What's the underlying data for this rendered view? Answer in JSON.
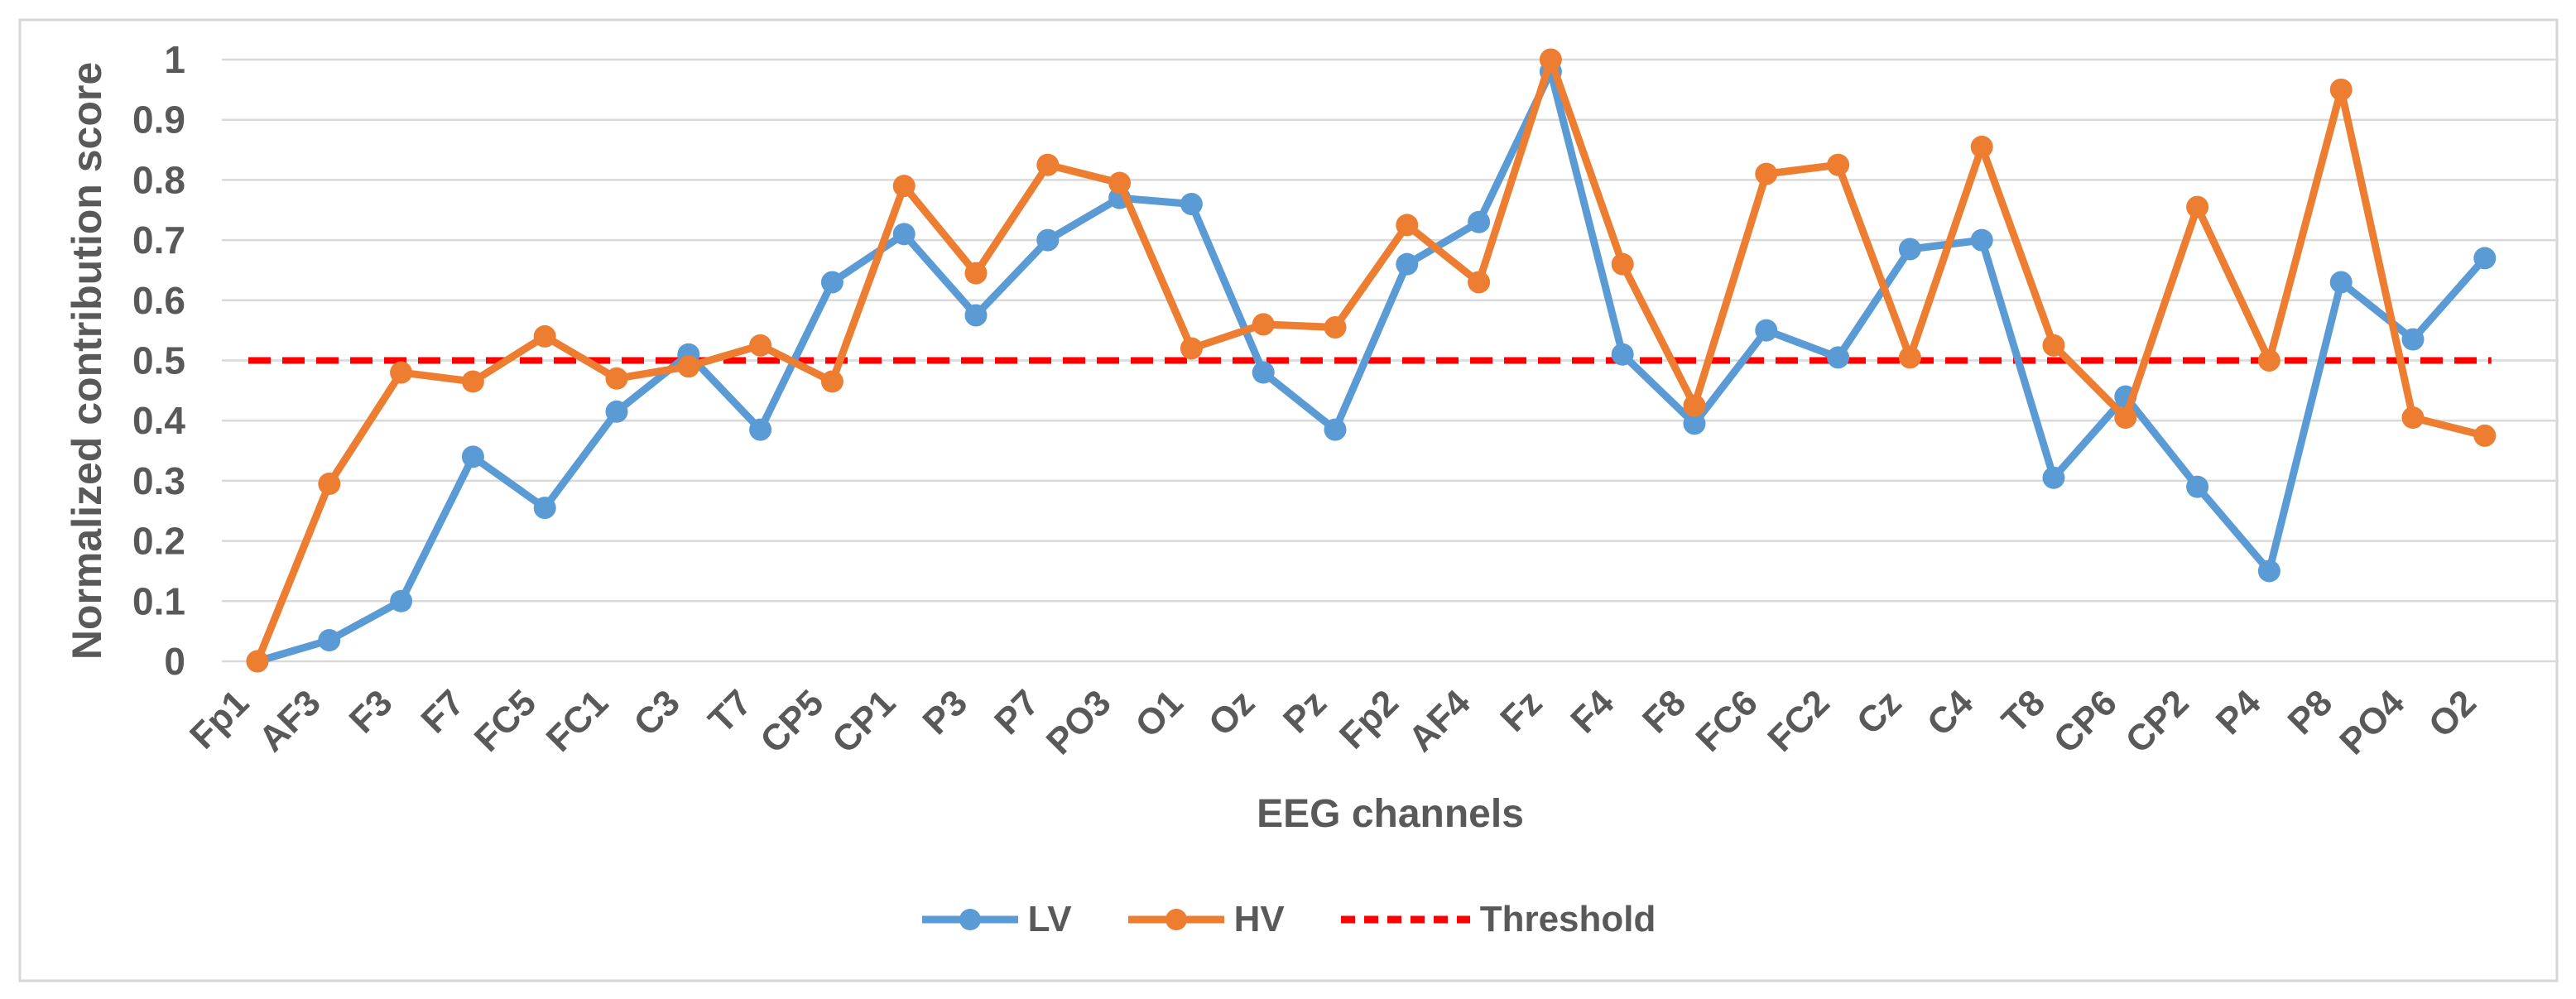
{
  "chart_data": {
    "type": "line",
    "title": "",
    "xlabel": "EEG channels",
    "ylabel": "Normalized contribution score",
    "ylim": [
      0,
      1
    ],
    "ytick_step": 0.1,
    "grid": true,
    "legend_position": "bottom",
    "categories": [
      "Fp1",
      "AF3",
      "F3",
      "F7",
      "FC5",
      "FC1",
      "C3",
      "T7",
      "CP5",
      "CP1",
      "P3",
      "P7",
      "PO3",
      "O1",
      "Oz",
      "Pz",
      "Fp2",
      "AF4",
      "Fz",
      "F4",
      "F8",
      "FC6",
      "FC2",
      "Cz",
      "C4",
      "T8",
      "CP6",
      "CP2",
      "P4",
      "P8",
      "PO4",
      "O2"
    ],
    "series": [
      {
        "name": "LV",
        "color": "#5B9BD5",
        "marker": "circle",
        "values": [
          0,
          0.035,
          0.1,
          0.34,
          0.255,
          0.415,
          0.51,
          0.385,
          0.63,
          0.71,
          0.575,
          0.7,
          0.77,
          0.76,
          0.48,
          0.385,
          0.66,
          0.73,
          0.98,
          0.51,
          0.395,
          0.55,
          0.505,
          0.685,
          0.7,
          0.305,
          0.44,
          0.29,
          0.15,
          0.63,
          0.535,
          0.67
        ]
      },
      {
        "name": "HV",
        "color": "#ED7D31",
        "marker": "circle",
        "values": [
          0,
          0.295,
          0.48,
          0.465,
          0.54,
          0.47,
          0.49,
          0.525,
          0.465,
          0.79,
          0.645,
          0.825,
          0.795,
          0.52,
          0.56,
          0.555,
          0.725,
          0.63,
          1,
          0.66,
          0.425,
          0.81,
          0.825,
          0.505,
          0.855,
          0.525,
          0.405,
          0.755,
          0.5,
          0.95,
          0.405,
          0.375
        ]
      }
    ],
    "threshold": {
      "name": "Threshold",
      "value": 0.5,
      "color": "#FF0000",
      "style": "dashed"
    },
    "colors": {
      "gridline": "#D9D9D9",
      "frame": "#D6D6D6",
      "text": "#595959"
    }
  }
}
